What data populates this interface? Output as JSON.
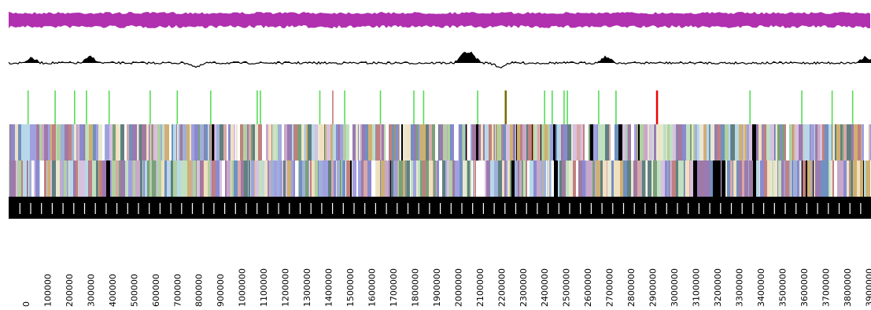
{
  "tracks": {
    "gc_skew_color": "#b030b0",
    "gc_content_color": "#000000",
    "feature_colors": {
      "rRNA_like": "#55dd55",
      "tRNA_like": "#ee0000",
      "repeat_like": "#7a6a00",
      "light": "#cc7777"
    },
    "feature_markers": [
      {
        "pos": 90000,
        "type": "rRNA_like"
      },
      {
        "pos": 215000,
        "type": "rRNA_like"
      },
      {
        "pos": 305000,
        "type": "rRNA_like"
      },
      {
        "pos": 360000,
        "type": "rRNA_like"
      },
      {
        "pos": 465000,
        "type": "rRNA_like"
      },
      {
        "pos": 655000,
        "type": "rRNA_like"
      },
      {
        "pos": 780000,
        "type": "rRNA_like"
      },
      {
        "pos": 935000,
        "type": "rRNA_like"
      },
      {
        "pos": 1150000,
        "type": "rRNA_like"
      },
      {
        "pos": 1165000,
        "type": "rRNA_like"
      },
      {
        "pos": 1440000,
        "type": "rRNA_like"
      },
      {
        "pos": 1500000,
        "type": "light"
      },
      {
        "pos": 1555000,
        "type": "rRNA_like"
      },
      {
        "pos": 1720000,
        "type": "rRNA_like"
      },
      {
        "pos": 1875000,
        "type": "rRNA_like"
      },
      {
        "pos": 1920000,
        "type": "rRNA_like"
      },
      {
        "pos": 2170000,
        "type": "rRNA_like"
      },
      {
        "pos": 2300000,
        "type": "repeat_like"
      },
      {
        "pos": 2480000,
        "type": "rRNA_like"
      },
      {
        "pos": 2515000,
        "type": "rRNA_like"
      },
      {
        "pos": 2570000,
        "type": "rRNA_like"
      },
      {
        "pos": 2585000,
        "type": "rRNA_like"
      },
      {
        "pos": 2730000,
        "type": "rRNA_like"
      },
      {
        "pos": 2810000,
        "type": "rRNA_like"
      },
      {
        "pos": 3000000,
        "type": "tRNA_like"
      },
      {
        "pos": 3430000,
        "type": "rRNA_like"
      },
      {
        "pos": 3670000,
        "type": "rRNA_like"
      },
      {
        "pos": 3810000,
        "type": "rRNA_like"
      },
      {
        "pos": 3905000,
        "type": "rRNA_like"
      }
    ],
    "palette": [
      "#c8a8c8",
      "#9fb0d8",
      "#8a8ad0",
      "#d0b070",
      "#b0d0a0",
      "#e8e8d0",
      "#a07aa0",
      "#c08080",
      "#7090c0",
      "#b8d8e8",
      "#7aa07a",
      "#f0e0c0",
      "#000000",
      "#d8c0e0",
      "#608080",
      "#a0a0e0",
      "#d8a8a8",
      "#c0e0c0",
      "#ffffff",
      "#9a7ab0"
    ]
  },
  "axis": {
    "labels": [
      "0",
      "100000",
      "200000",
      "300000",
      "400000",
      "500000",
      "600000",
      "700000",
      "800000",
      "900000",
      "1000000",
      "1100000",
      "1200000",
      "1300000",
      "1400000",
      "1500000",
      "1600000",
      "1700000",
      "1800000",
      "1900000",
      "2000000",
      "2100000",
      "2200000",
      "2300000",
      "2400000",
      "2500000",
      "2600000",
      "2700000",
      "2800000",
      "2900000",
      "3000000",
      "3100000",
      "3200000",
      "3300000",
      "3400000",
      "3500000",
      "3600000",
      "3700000",
      "3800000",
      "3900000"
    ],
    "scale_bar_color": "#000000"
  }
}
